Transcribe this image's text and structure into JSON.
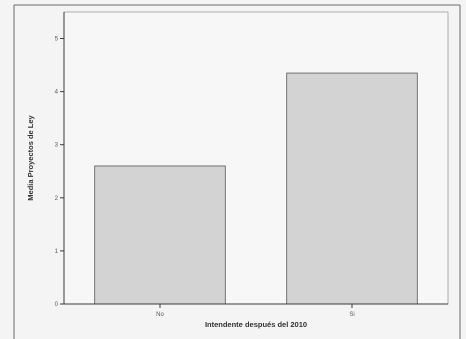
{
  "chart_data": {
    "type": "bar",
    "categories": [
      "No",
      "Si"
    ],
    "values": [
      2.6,
      4.35
    ],
    "xlabel": "Intendente después del 2010",
    "ylabel": "Media Proyectos de Ley",
    "ylim": [
      0,
      5.5
    ],
    "yticks": [
      "0",
      "1",
      "2",
      "3",
      "4",
      "5"
    ],
    "grid": false,
    "legend": "none"
  },
  "colors": {
    "bar_fill": "#d3d3d3",
    "bar_stroke": "#555555",
    "background": "#f7f7f7"
  }
}
